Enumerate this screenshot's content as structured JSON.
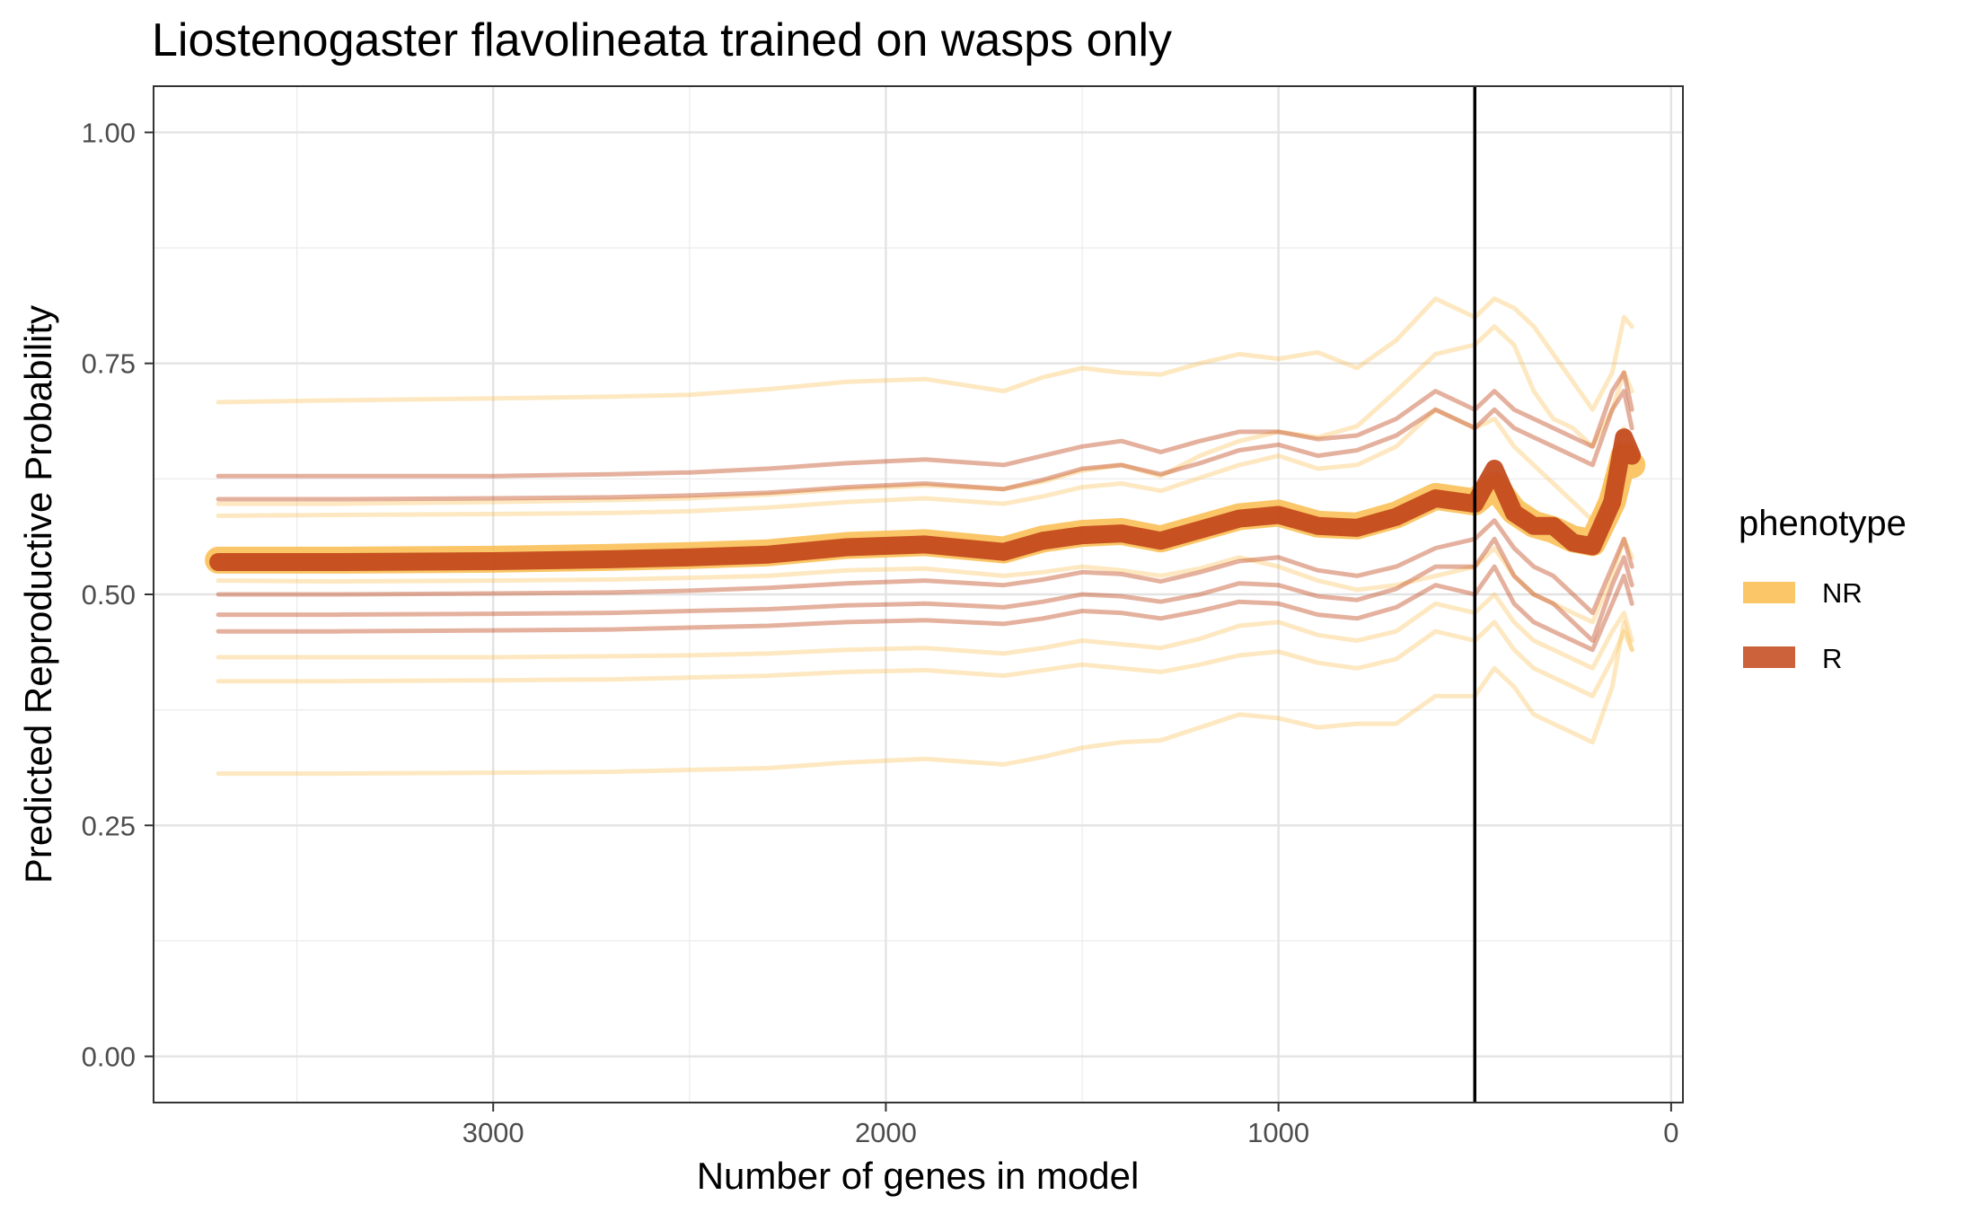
{
  "chart_data": {
    "type": "line",
    "title": "Liostenogaster flavolineata trained on wasps only",
    "xlabel": "Number of genes in model",
    "ylabel": "Predicted Reproductive Probability",
    "xlim": [
      3865,
      -30
    ],
    "ylim": [
      -0.05,
      1.05
    ],
    "x_reversed": true,
    "x_ticks": [
      3000,
      2000,
      1000,
      0
    ],
    "x_tick_labels": [
      "3000",
      "2000",
      "1000",
      "0"
    ],
    "y_ticks": [
      0.0,
      0.25,
      0.5,
      0.75,
      1.0
    ],
    "y_tick_labels": [
      "0.00",
      "0.25",
      "0.50",
      "0.75",
      "1.00"
    ],
    "grid": true,
    "vline_x": 500,
    "legend": {
      "title": "phenotype",
      "position": "right",
      "items": [
        {
          "label": "NR",
          "color": "#F9BC4C"
        },
        {
          "label": "R",
          "color": "#C2461A"
        }
      ]
    },
    "x": [
      3700,
      3400,
      3000,
      2700,
      2500,
      2300,
      2100,
      1900,
      1700,
      1600,
      1500,
      1400,
      1300,
      1200,
      1100,
      1000,
      900,
      800,
      700,
      600,
      500,
      450,
      400,
      350,
      300,
      250,
      200,
      150,
      120,
      100
    ],
    "series": [
      {
        "group": "NR",
        "kind": "individual",
        "values": [
          0.708,
          0.71,
          0.712,
          0.714,
          0.716,
          0.722,
          0.73,
          0.733,
          0.72,
          0.735,
          0.745,
          0.74,
          0.738,
          0.75,
          0.76,
          0.755,
          0.762,
          0.745,
          0.775,
          0.82,
          0.8,
          0.82,
          0.81,
          0.79,
          0.76,
          0.73,
          0.7,
          0.74,
          0.8,
          0.79
        ]
      },
      {
        "group": "NR",
        "kind": "individual",
        "values": [
          0.598,
          0.598,
          0.6,
          0.602,
          0.604,
          0.608,
          0.614,
          0.618,
          0.614,
          0.622,
          0.634,
          0.64,
          0.628,
          0.65,
          0.666,
          0.676,
          0.67,
          0.682,
          0.72,
          0.76,
          0.77,
          0.79,
          0.77,
          0.72,
          0.69,
          0.68,
          0.66,
          0.7,
          0.74,
          0.72
        ]
      },
      {
        "group": "NR",
        "kind": "individual",
        "values": [
          0.585,
          0.586,
          0.587,
          0.588,
          0.59,
          0.594,
          0.6,
          0.604,
          0.598,
          0.606,
          0.616,
          0.62,
          0.612,
          0.626,
          0.64,
          0.65,
          0.636,
          0.64,
          0.66,
          0.7,
          0.68,
          0.69,
          0.66,
          0.64,
          0.62,
          0.6,
          0.58,
          0.64,
          0.68,
          0.66
        ]
      },
      {
        "group": "NR",
        "kind": "individual",
        "values": [
          0.515,
          0.514,
          0.515,
          0.516,
          0.518,
          0.52,
          0.526,
          0.528,
          0.52,
          0.524,
          0.53,
          0.526,
          0.52,
          0.528,
          0.54,
          0.53,
          0.515,
          0.505,
          0.51,
          0.52,
          0.53,
          0.55,
          0.52,
          0.5,
          0.49,
          0.48,
          0.47,
          0.52,
          0.56,
          0.54
        ]
      },
      {
        "group": "NR",
        "kind": "individual",
        "values": [
          0.432,
          0.432,
          0.432,
          0.433,
          0.434,
          0.436,
          0.44,
          0.442,
          0.436,
          0.442,
          0.45,
          0.446,
          0.442,
          0.452,
          0.466,
          0.47,
          0.456,
          0.45,
          0.46,
          0.49,
          0.48,
          0.5,
          0.47,
          0.45,
          0.44,
          0.43,
          0.42,
          0.46,
          0.48,
          0.45
        ]
      },
      {
        "group": "NR",
        "kind": "individual",
        "values": [
          0.406,
          0.406,
          0.407,
          0.408,
          0.41,
          0.412,
          0.416,
          0.418,
          0.412,
          0.418,
          0.424,
          0.42,
          0.416,
          0.424,
          0.434,
          0.438,
          0.426,
          0.42,
          0.43,
          0.46,
          0.45,
          0.47,
          0.44,
          0.42,
          0.41,
          0.4,
          0.39,
          0.43,
          0.46,
          0.44
        ]
      },
      {
        "group": "NR",
        "kind": "individual",
        "values": [
          0.306,
          0.306,
          0.307,
          0.308,
          0.31,
          0.312,
          0.318,
          0.322,
          0.316,
          0.324,
          0.334,
          0.34,
          0.342,
          0.356,
          0.37,
          0.366,
          0.356,
          0.36,
          0.36,
          0.39,
          0.39,
          0.42,
          0.4,
          0.37,
          0.36,
          0.35,
          0.34,
          0.4,
          0.47,
          0.44
        ]
      },
      {
        "group": "R",
        "kind": "individual",
        "values": [
          0.628,
          0.628,
          0.628,
          0.63,
          0.632,
          0.636,
          0.642,
          0.646,
          0.64,
          0.65,
          0.66,
          0.666,
          0.654,
          0.666,
          0.676,
          0.676,
          0.668,
          0.672,
          0.69,
          0.72,
          0.7,
          0.72,
          0.7,
          0.69,
          0.68,
          0.67,
          0.66,
          0.72,
          0.74,
          0.7
        ]
      },
      {
        "group": "R",
        "kind": "individual",
        "values": [
          0.603,
          0.603,
          0.604,
          0.605,
          0.607,
          0.61,
          0.616,
          0.62,
          0.614,
          0.624,
          0.636,
          0.64,
          0.63,
          0.642,
          0.656,
          0.662,
          0.65,
          0.656,
          0.672,
          0.7,
          0.68,
          0.7,
          0.68,
          0.67,
          0.66,
          0.65,
          0.64,
          0.7,
          0.72,
          0.68
        ]
      },
      {
        "group": "R",
        "kind": "individual",
        "values": [
          0.5,
          0.5,
          0.501,
          0.502,
          0.504,
          0.507,
          0.512,
          0.515,
          0.51,
          0.516,
          0.524,
          0.522,
          0.514,
          0.524,
          0.536,
          0.54,
          0.526,
          0.52,
          0.53,
          0.55,
          0.56,
          0.58,
          0.55,
          0.53,
          0.52,
          0.5,
          0.48,
          0.53,
          0.56,
          0.53
        ]
      },
      {
        "group": "R",
        "kind": "individual",
        "values": [
          0.478,
          0.478,
          0.479,
          0.48,
          0.482,
          0.484,
          0.488,
          0.49,
          0.486,
          0.492,
          0.5,
          0.498,
          0.492,
          0.5,
          0.512,
          0.51,
          0.498,
          0.494,
          0.506,
          0.53,
          0.53,
          0.56,
          0.52,
          0.5,
          0.49,
          0.47,
          0.45,
          0.51,
          0.54,
          0.51
        ]
      },
      {
        "group": "R",
        "kind": "individual",
        "values": [
          0.46,
          0.46,
          0.461,
          0.462,
          0.464,
          0.466,
          0.47,
          0.472,
          0.468,
          0.474,
          0.482,
          0.48,
          0.474,
          0.482,
          0.492,
          0.49,
          0.478,
          0.474,
          0.486,
          0.51,
          0.5,
          0.53,
          0.49,
          0.47,
          0.46,
          0.45,
          0.44,
          0.49,
          0.52,
          0.49
        ]
      },
      {
        "group": "NR",
        "kind": "mean",
        "values": [
          0.537,
          0.537,
          0.538,
          0.54,
          0.542,
          0.545,
          0.553,
          0.556,
          0.548,
          0.56,
          0.566,
          0.568,
          0.56,
          0.572,
          0.584,
          0.588,
          0.576,
          0.574,
          0.586,
          0.606,
          0.6,
          0.618,
          0.59,
          0.576,
          0.57,
          0.56,
          0.556,
          0.6,
          0.65,
          0.64
        ]
      },
      {
        "group": "R",
        "kind": "mean",
        "values": [
          0.535,
          0.535,
          0.536,
          0.538,
          0.54,
          0.543,
          0.551,
          0.554,
          0.546,
          0.558,
          0.564,
          0.566,
          0.558,
          0.57,
          0.582,
          0.586,
          0.574,
          0.572,
          0.584,
          0.604,
          0.598,
          0.636,
          0.588,
          0.574,
          0.574,
          0.556,
          0.552,
          0.6,
          0.67,
          0.65
        ]
      }
    ]
  }
}
